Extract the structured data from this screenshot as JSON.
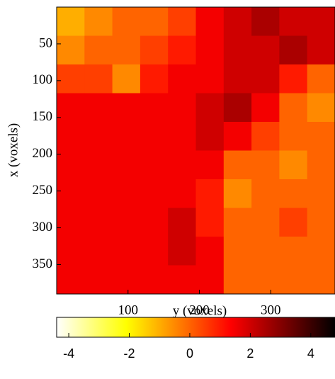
{
  "chart_data": {
    "type": "heatmap",
    "xlabel": "y (voxels)",
    "ylabel": "x (voxels)",
    "xlim": [
      0,
      390
    ],
    "xticks": [
      100,
      200,
      300
    ],
    "ylim": [
      0,
      390
    ],
    "yticks": [
      50,
      100,
      150,
      200,
      250,
      300,
      350
    ],
    "colormap": "hot_r",
    "clim": [
      -4.4,
      4.8
    ],
    "cticks": [
      -4,
      -2,
      0,
      2,
      4
    ],
    "z": [
      [
        -1,
        -0.5,
        0,
        0,
        0.5,
        1.5,
        2,
        2.5,
        2,
        2
      ],
      [
        -0.5,
        0,
        0,
        0.5,
        1,
        1.5,
        2,
        2,
        2.5,
        2
      ],
      [
        0.5,
        0.5,
        -0.5,
        1,
        1.5,
        1.5,
        2,
        2,
        1,
        0
      ],
      [
        1.5,
        1.5,
        1.5,
        1.5,
        1.5,
        2,
        2.5,
        1.5,
        0,
        -0.5
      ],
      [
        1.5,
        1.5,
        1.5,
        1.5,
        1.5,
        2,
        1.5,
        0.5,
        0,
        0
      ],
      [
        1.5,
        1.5,
        1.5,
        1.5,
        1.5,
        1.5,
        0,
        0,
        -0.5,
        0
      ],
      [
        1.5,
        1.5,
        1.5,
        1.5,
        1.5,
        1,
        -0.5,
        0,
        0,
        0
      ],
      [
        1.5,
        1.5,
        1.5,
        1.5,
        2,
        1,
        0,
        0,
        0.5,
        0
      ],
      [
        1.5,
        1.5,
        1.5,
        1.5,
        2,
        1.5,
        0,
        0,
        0,
        0
      ],
      [
        1.5,
        1.5,
        1.5,
        1.5,
        1.5,
        1.5,
        0,
        0,
        0,
        0
      ]
    ]
  }
}
